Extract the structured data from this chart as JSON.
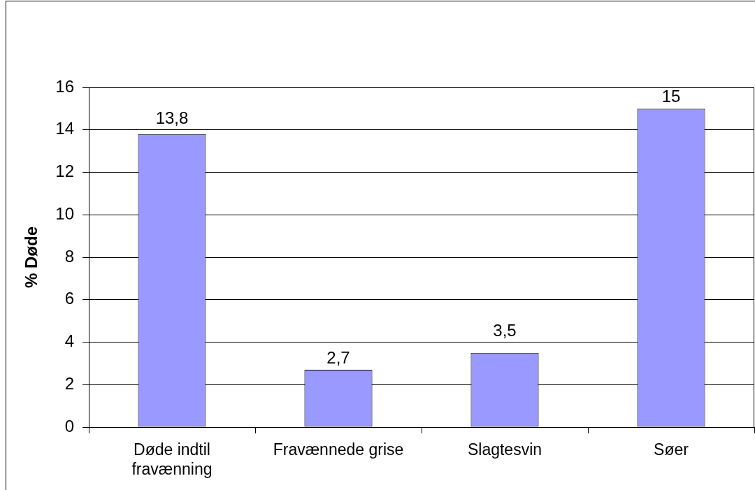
{
  "chart_data": {
    "type": "bar",
    "ylabel": "% Døde",
    "categories": [
      "Døde indtil fravænning",
      "Fravænnede grise",
      "Slagtesvin",
      "Søer"
    ],
    "values": [
      13.8,
      2.7,
      3.5,
      15
    ],
    "value_labels": [
      "13,8",
      "2,7",
      "3,5",
      "15"
    ],
    "color": "#9999ff",
    "ylim": [
      0,
      16
    ],
    "yticks": [
      0,
      2,
      4,
      6,
      8,
      10,
      12,
      14,
      16
    ],
    "grid": "y"
  }
}
